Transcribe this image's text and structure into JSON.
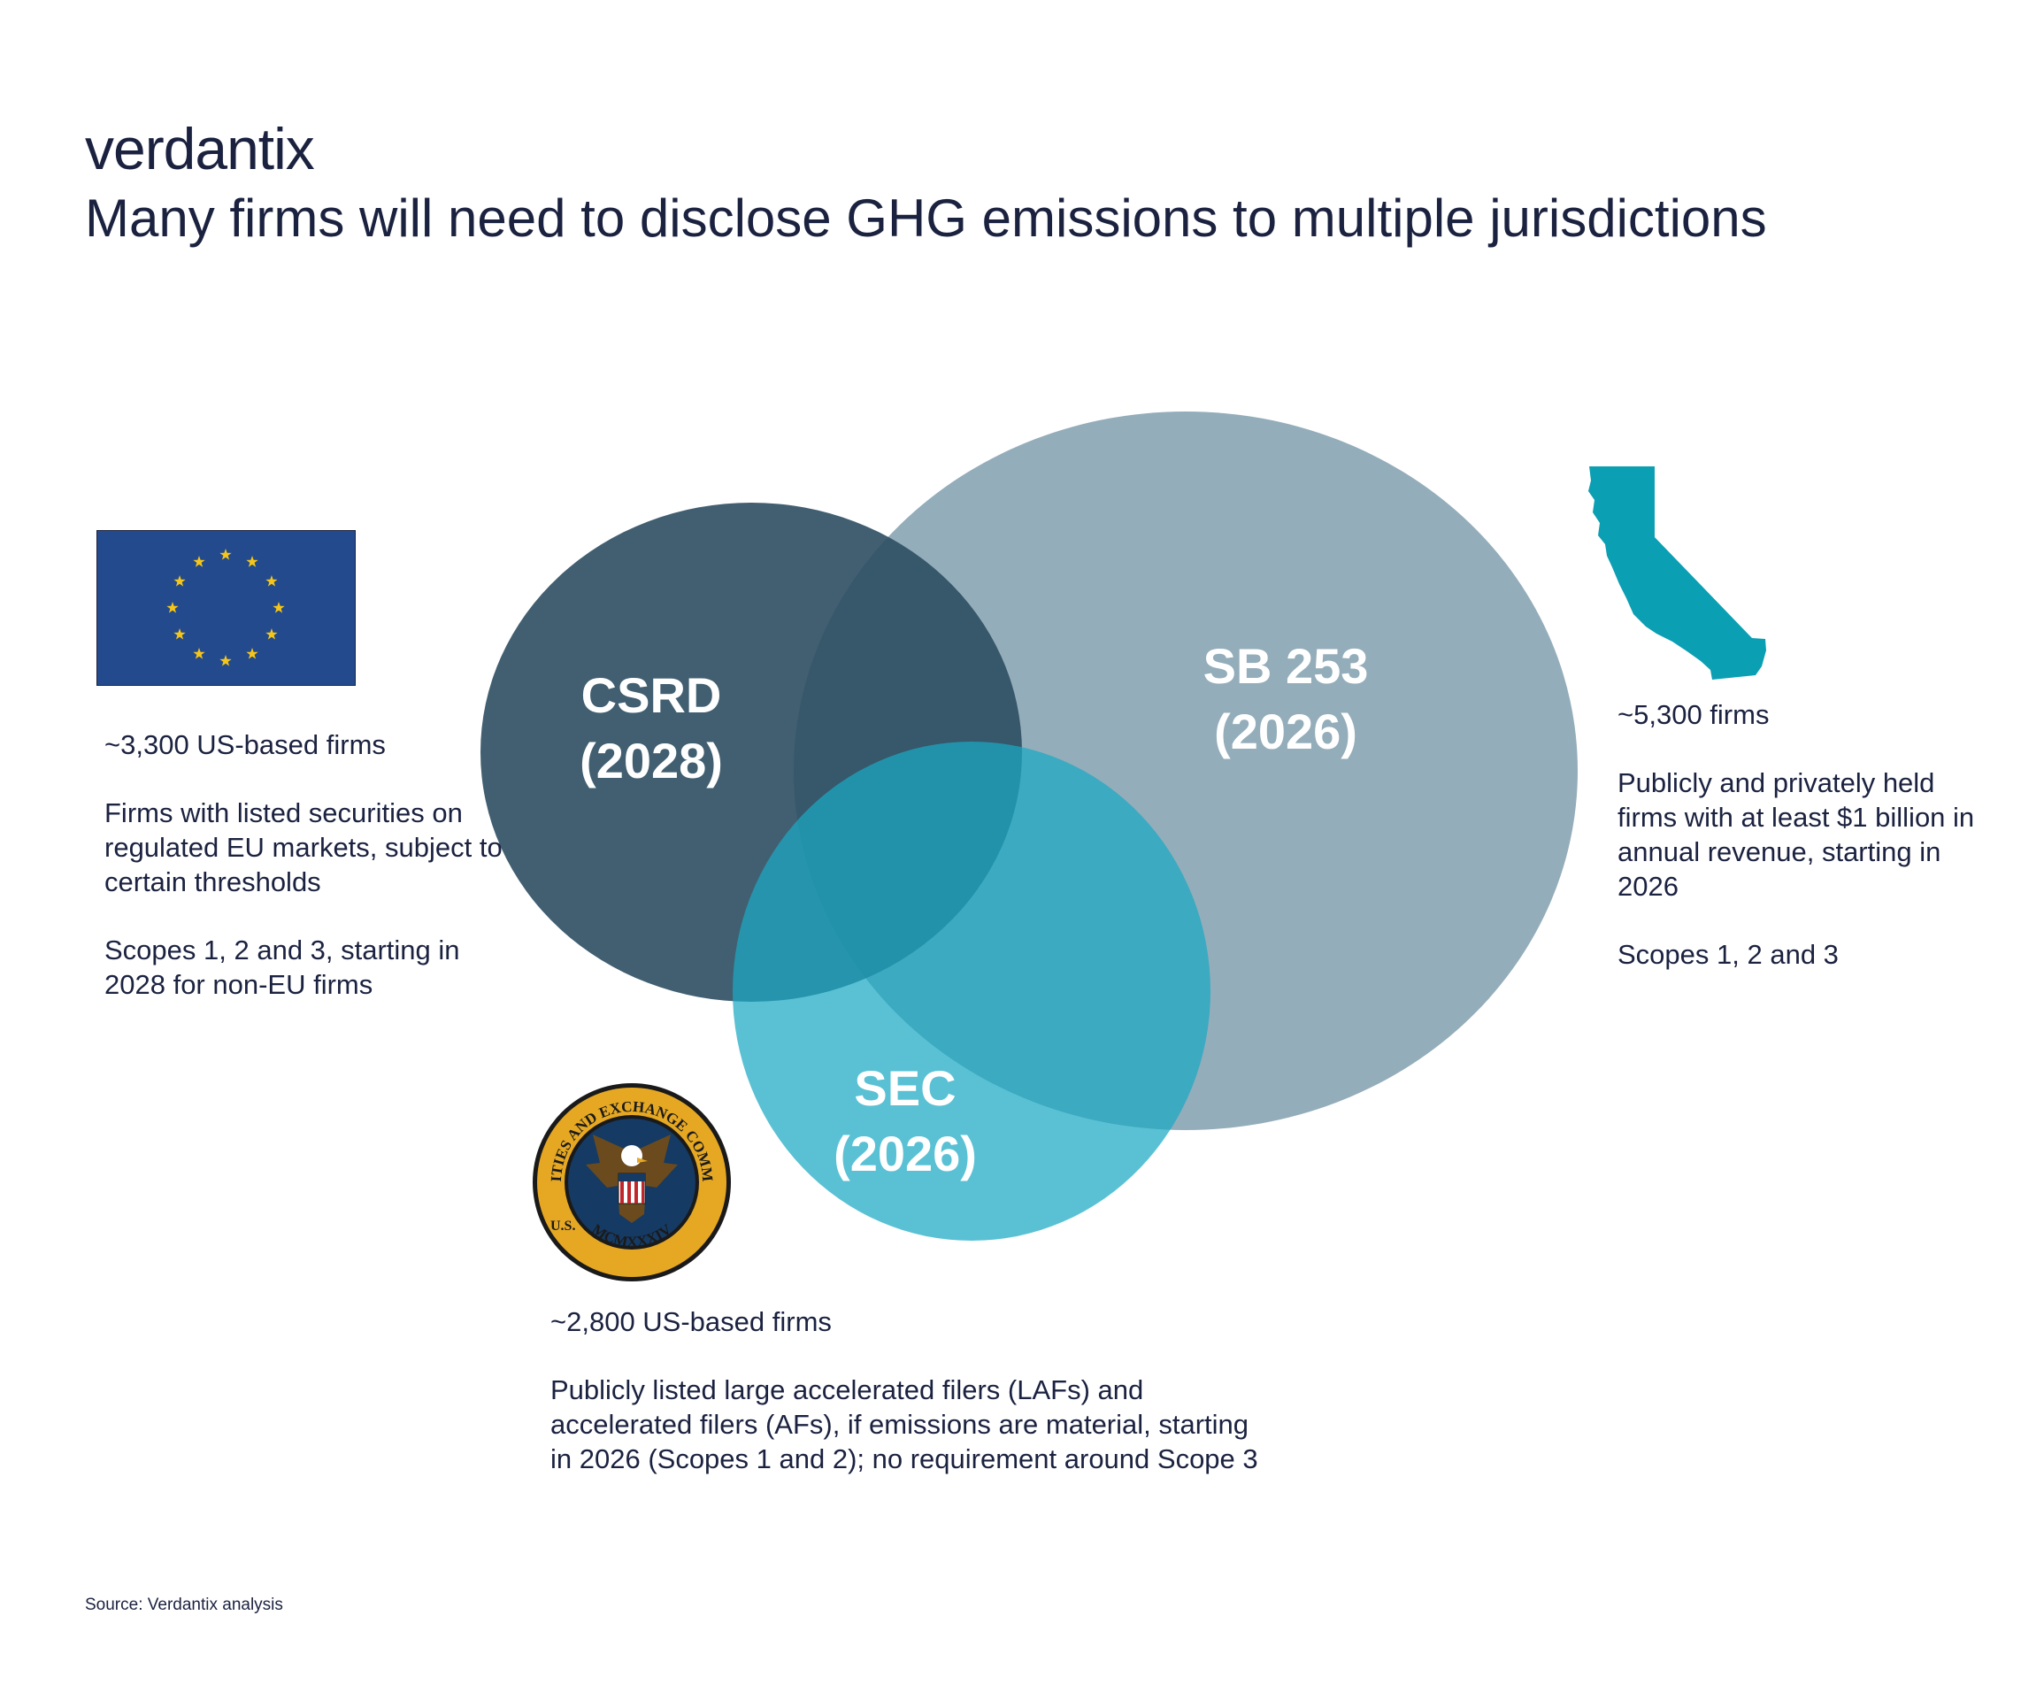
{
  "brand": {
    "logo_text": "verdantix"
  },
  "title": "Many firms will need to disclose GHG emissions to multiple jurisdictions",
  "colors": {
    "csrd": "#2c4e62",
    "sb253": "#7d9bab",
    "sec": "#1ba9c4",
    "california": "#0b9fb3",
    "eu_blue": "#234a8c",
    "eu_star": "#f5c518",
    "text": "#1b2240"
  },
  "circles": {
    "csrd": {
      "line1": "CSRD",
      "line2": "(2028)"
    },
    "sb253": {
      "line1": "SB 253",
      "line2": "(2026)"
    },
    "sec": {
      "line1": "SEC",
      "line2": "(2026)"
    }
  },
  "eu": {
    "icon": "eu-flag-icon",
    "count": "~3,300 US-based firms",
    "description": "Firms with listed securities on regulated EU markets, subject to certain thresholds",
    "scope": "Scopes 1, 2 and 3, starting in 2028 for non-EU firms"
  },
  "california": {
    "icon": "california-map-icon",
    "count": "~5,300 firms",
    "description": "Publicly and privately held firms with at least $1 billion in annual revenue, starting in 2026",
    "scope": "Scopes 1, 2 and 3"
  },
  "sec": {
    "icon": "sec-seal-icon",
    "seal_text_top": "SECURITIES AND EXCHANGE COMMISSION",
    "seal_text_left": "U.S.",
    "seal_text_bottom": "MCMXXXIV",
    "count": "~2,800 US-based firms",
    "description": "Publicly listed large accelerated filers (LAFs) and accelerated filers (AFs), if emissions are material, starting in 2026 (Scopes 1 and 2); no requirement around Scope 3"
  },
  "source": "Source: Verdantix analysis"
}
